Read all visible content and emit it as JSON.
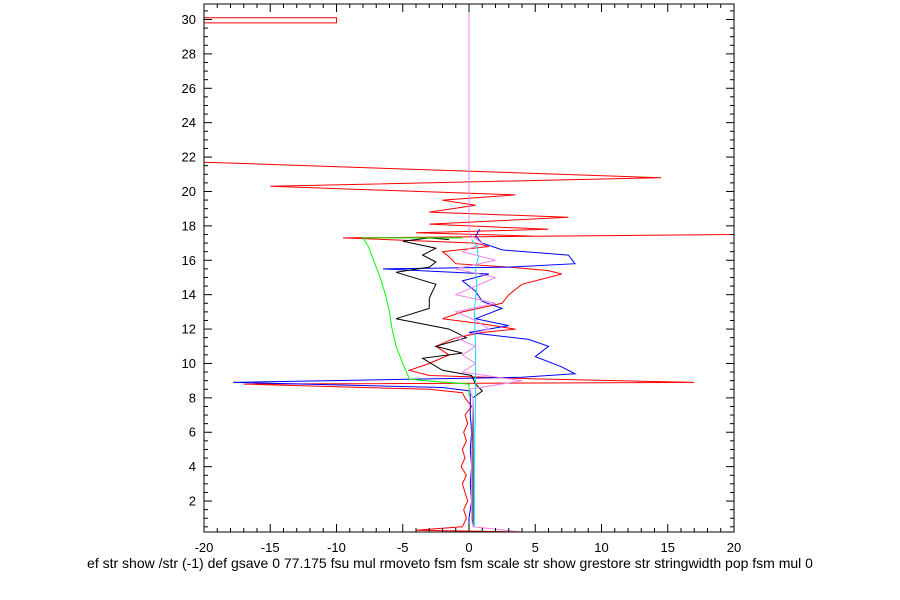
{
  "chart_data": {
    "type": "line",
    "title": "",
    "xlabel": "ef str show /str (-1) def gsave 0 77.175 fsu mul rmoveto fsm fsm scale str show grestore str stringwidth pop fsm mul 0",
    "ylabel": "",
    "xlim": [
      -20,
      20
    ],
    "ylim": [
      0.2,
      30.9
    ],
    "grid": false,
    "legend": "none",
    "x_ticks": [
      -20,
      -15,
      -10,
      -5,
      0,
      5,
      10,
      15,
      20
    ],
    "y_ticks": [
      2,
      4,
      6,
      8,
      10,
      12,
      14,
      16,
      18,
      20,
      22,
      24,
      26,
      28,
      30
    ],
    "series": [
      {
        "color": "#ff0000",
        "points": [
          [
            4.0,
            0.2
          ],
          [
            -4,
            0.3
          ],
          [
            -0.5,
            0.5
          ],
          [
            -0.2,
            1
          ],
          [
            -0.4,
            1.5
          ],
          [
            -0.1,
            2
          ],
          [
            -0.3,
            2.5
          ],
          [
            -0.5,
            3
          ],
          [
            -0.2,
            3.5
          ],
          [
            -0.6,
            4
          ],
          [
            -0.3,
            4.5
          ],
          [
            -0.5,
            5
          ],
          [
            -0.2,
            5.5
          ],
          [
            -0.4,
            6
          ],
          [
            -0.1,
            6.5
          ],
          [
            -0.3,
            7
          ],
          [
            0.2,
            7.5
          ],
          [
            -0.3,
            8
          ],
          [
            -0.5,
            8.3
          ],
          [
            -3,
            8.5
          ],
          [
            -17,
            8.8
          ],
          [
            17,
            8.9
          ],
          [
            5,
            9.1
          ],
          [
            -3,
            9.3
          ],
          [
            -4.5,
            9.6
          ],
          [
            -3,
            10
          ],
          [
            -1.5,
            10.5
          ],
          [
            -2.5,
            11
          ],
          [
            -1,
            11.5
          ],
          [
            1,
            11.8
          ],
          [
            3.5,
            12
          ],
          [
            1,
            12.3
          ],
          [
            -2,
            12.6
          ],
          [
            -0.5,
            13
          ],
          [
            2.5,
            13.5
          ],
          [
            3,
            14
          ],
          [
            4,
            14.6
          ],
          [
            7,
            15.2
          ],
          [
            6,
            15.4
          ],
          [
            3,
            15.6
          ],
          [
            -1,
            15.8
          ],
          [
            -1.5,
            16.2
          ],
          [
            -2,
            16.5
          ],
          [
            1.5,
            16.8
          ],
          [
            0.5,
            17
          ],
          [
            -9.5,
            17.3
          ],
          [
            20,
            17.5
          ],
          [
            5,
            17.4
          ],
          [
            -4,
            17.6
          ],
          [
            6,
            17.8
          ],
          [
            -3,
            18.1
          ],
          [
            7.5,
            18.5
          ],
          [
            -3,
            18.8
          ],
          [
            0.5,
            19.2
          ],
          [
            -2,
            19.5
          ],
          [
            3.5,
            19.8
          ],
          [
            -15,
            20.3
          ],
          [
            14.5,
            20.8
          ],
          [
            -20,
            21.7
          ],
          [
            -20,
            30.1
          ],
          [
            -10,
            30.1
          ],
          [
            -10,
            29.8
          ],
          [
            -20,
            29.8
          ],
          [
            -20,
            30.9
          ],
          [
            -3,
            30.9
          ]
        ]
      },
      {
        "color": "#0000ff",
        "points": [
          [
            0,
            0.2
          ],
          [
            0,
            1
          ],
          [
            0.2,
            2
          ],
          [
            0.1,
            3
          ],
          [
            0.2,
            4
          ],
          [
            0.1,
            5
          ],
          [
            0.2,
            6
          ],
          [
            0.1,
            7
          ],
          [
            0.1,
            8
          ],
          [
            0.1,
            8.4
          ],
          [
            -2,
            8.6
          ],
          [
            -17.8,
            8.9
          ],
          [
            -3,
            9.1
          ],
          [
            4,
            9.2
          ],
          [
            8,
            9.4
          ],
          [
            7,
            9.8
          ],
          [
            5,
            10.4
          ],
          [
            6,
            11
          ],
          [
            4.5,
            11.4
          ],
          [
            0,
            11.8
          ],
          [
            3,
            12.2
          ],
          [
            0.5,
            12.6
          ],
          [
            2.5,
            13.2
          ],
          [
            1,
            13.6
          ],
          [
            0.5,
            14.2
          ],
          [
            -0.5,
            14.8
          ],
          [
            1.5,
            15.2
          ],
          [
            -6.5,
            15.5
          ],
          [
            3,
            15.6
          ],
          [
            8,
            15.8
          ],
          [
            7.5,
            16.3
          ],
          [
            2.5,
            16.6
          ],
          [
            1,
            17
          ],
          [
            0.5,
            17.4
          ],
          [
            0.8,
            17.8
          ]
        ]
      },
      {
        "color": "#000000",
        "points": [
          [
            0.3,
            0.5
          ],
          [
            0.3,
            8
          ],
          [
            1,
            8.4
          ],
          [
            0.5,
            8.8
          ],
          [
            0.2,
            9.3
          ],
          [
            -2,
            9.6
          ],
          [
            -3.5,
            10.3
          ],
          [
            -0.5,
            10.6
          ],
          [
            -2.5,
            11
          ],
          [
            -0.2,
            11.5
          ],
          [
            -1.5,
            12
          ],
          [
            -5.5,
            12.6
          ],
          [
            -3,
            13.2
          ],
          [
            -3,
            13.8
          ],
          [
            -2.5,
            14.6
          ],
          [
            -5.5,
            15.3
          ],
          [
            -3,
            15.6
          ],
          [
            -2.5,
            15.9
          ],
          [
            -3.5,
            16.3
          ],
          [
            -2.5,
            16.7
          ],
          [
            -5,
            17.1
          ],
          [
            -3,
            17.3
          ],
          [
            -1.5,
            17.2
          ]
        ]
      },
      {
        "color": "#00ff00",
        "points": [
          [
            0,
            8.1
          ],
          [
            0,
            8.8
          ],
          [
            -3.3,
            9.0
          ],
          [
            -4.5,
            9.1
          ],
          [
            -5,
            10
          ],
          [
            -5.5,
            11
          ],
          [
            -5.8,
            12
          ],
          [
            -6,
            13
          ],
          [
            -6.3,
            14
          ],
          [
            -6.7,
            15
          ],
          [
            -7.2,
            16
          ],
          [
            -7.6,
            16.8
          ],
          [
            -8,
            17.3
          ],
          [
            -0.5,
            17.3
          ]
        ]
      },
      {
        "color": "#00e0ff",
        "points": [
          [
            0.4,
            0.5
          ],
          [
            0.4,
            4
          ],
          [
            0.5,
            8
          ],
          [
            0.5,
            9
          ],
          [
            0.5,
            11
          ],
          [
            0.4,
            13
          ],
          [
            0.6,
            14.5
          ],
          [
            0.5,
            15.5
          ],
          [
            0.7,
            16.2
          ],
          [
            0.6,
            16.8
          ],
          [
            0.2,
            17.2
          ]
        ]
      },
      {
        "color": "#ee82ee",
        "points": [
          [
            0,
            30.9
          ],
          [
            0,
            17.5
          ],
          [
            1,
            17
          ],
          [
            -0.5,
            16.5
          ],
          [
            2,
            16
          ],
          [
            -1,
            15.5
          ],
          [
            2,
            15
          ],
          [
            0.5,
            14.5
          ],
          [
            -1,
            14
          ],
          [
            2,
            13.5
          ],
          [
            -1,
            13
          ],
          [
            0.5,
            12.5
          ],
          [
            1.5,
            12
          ],
          [
            -1,
            11.5
          ],
          [
            0.5,
            11
          ],
          [
            -0.5,
            10.5
          ],
          [
            0.5,
            10
          ],
          [
            -0.5,
            9.5
          ],
          [
            4,
            9
          ],
          [
            0,
            8.5
          ],
          [
            0.3,
            8
          ],
          [
            0.2,
            5
          ],
          [
            0.2,
            1
          ],
          [
            0.3,
            0.5
          ],
          [
            4,
            0.2
          ]
        ]
      }
    ]
  }
}
